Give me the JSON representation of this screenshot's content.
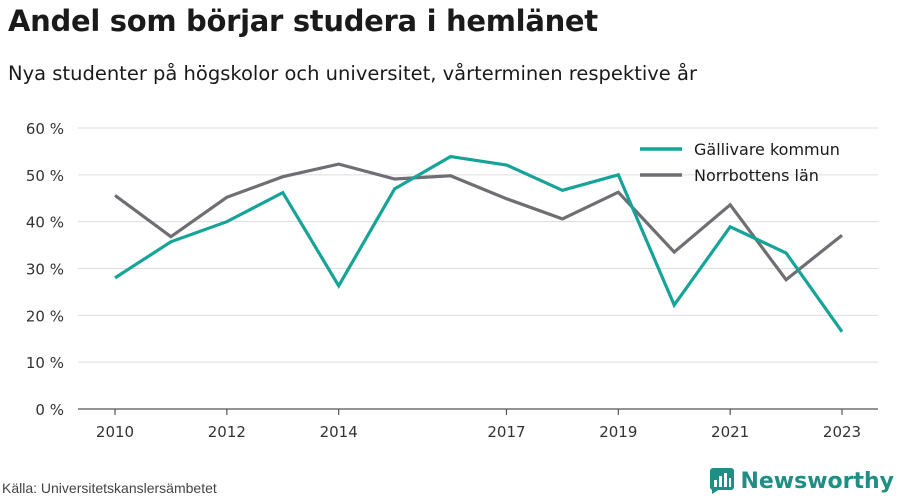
{
  "chart_data": {
    "type": "line",
    "title": "Andel som börjar studera i hemlänet",
    "subtitle": "Nya studenter på högskolor och universitet, vårterminen respektive år",
    "x": [
      2010,
      2011,
      2012,
      2013,
      2014,
      2015,
      2016,
      2017,
      2018,
      2019,
      2020,
      2021,
      2022,
      2023
    ],
    "x_tick_labels": [
      "2010",
      "2012",
      "2014",
      "2017",
      "2019",
      "2021",
      "2023"
    ],
    "y_tick_labels": [
      "0 %",
      "10 %",
      "20 %",
      "30 %",
      "40 %",
      "50 %",
      "60 %"
    ],
    "ylim": [
      0,
      60
    ],
    "legend_position": "top-right",
    "grid": true,
    "series": [
      {
        "name": "Gällivare kommun",
        "color": "#16a398",
        "values": [
          28.0,
          35.7,
          40.0,
          46.2,
          26.3,
          47.0,
          53.9,
          52.1,
          46.7,
          50.0,
          22.2,
          38.9,
          33.3,
          16.5
        ]
      },
      {
        "name": "Norrbottens län",
        "color": "#6e6e73",
        "values": [
          45.6,
          36.8,
          45.2,
          49.6,
          52.3,
          49.1,
          49.8,
          44.9,
          40.6,
          46.3,
          33.5,
          43.6,
          27.6,
          37.1
        ]
      }
    ]
  },
  "footer": {
    "source": "Källa: Universitetskanslersämbetet",
    "brand": "Newsworthy",
    "brand_color": "#1f8f86"
  }
}
